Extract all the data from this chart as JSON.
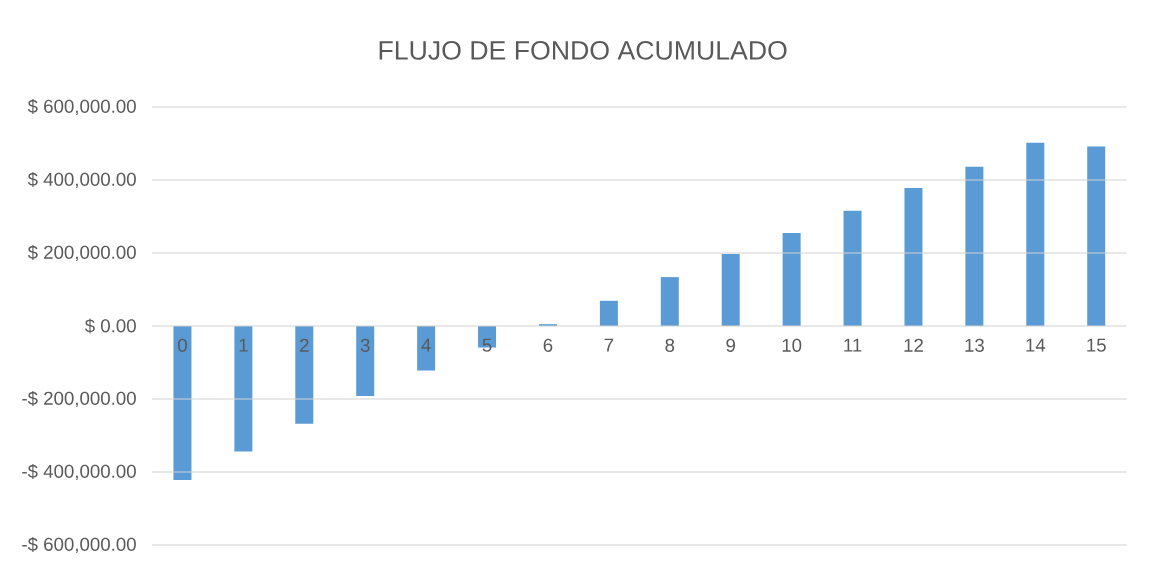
{
  "chart_data": {
    "type": "bar",
    "title": "FLUJO DE FONDO ACUMULADO",
    "categories": [
      "0",
      "1",
      "2",
      "3",
      "4",
      "5",
      "6",
      "7",
      "8",
      "9",
      "10",
      "11",
      "12",
      "13",
      "14",
      "15"
    ],
    "values": [
      -422000,
      -344000,
      -268000,
      -192000,
      -122000,
      -59000,
      5000,
      69000,
      134000,
      197000,
      255000,
      316000,
      378000,
      436000,
      502000,
      492000
    ],
    "color": "#5b9bd5",
    "ylim": [
      -600000,
      600000
    ],
    "yticks": [
      {
        "value": -600000,
        "label": "-$ 600,000.00"
      },
      {
        "value": -400000,
        "label": "-$ 400,000.00"
      },
      {
        "value": -200000,
        "label": "-$ 200,000.00"
      },
      {
        "value": 0,
        "label": "$ 0.00"
      },
      {
        "value": 200000,
        "label": "$ 200,000.00"
      },
      {
        "value": 400000,
        "label": "$ 400,000.00"
      },
      {
        "value": 600000,
        "label": "$ 600,000.00"
      }
    ],
    "grid": "y"
  }
}
